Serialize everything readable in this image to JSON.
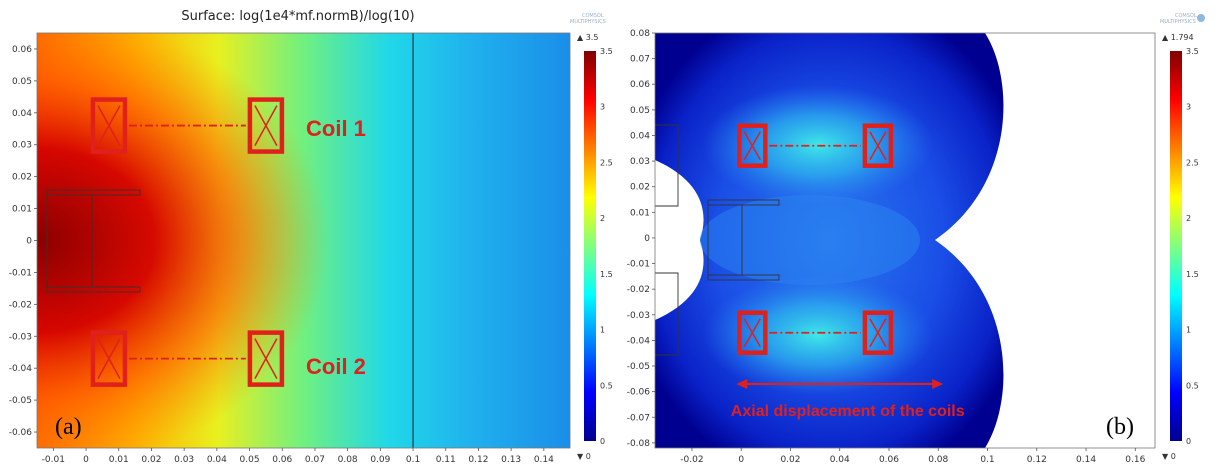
{
  "chart_data": [
    {
      "type": "heatmap",
      "panel_label": "(a)",
      "title": "Surface: log(1e4*mf.normB)/log(10)",
      "xlim": [
        -0.015,
        0.148
      ],
      "ylim": [
        -0.065,
        0.065
      ],
      "x_ticks": [
        "-0.01",
        "0",
        "0.01",
        "0.02",
        "0.03",
        "0.04",
        "0.05",
        "0.06",
        "0.07",
        "0.08",
        "0.09",
        "0.1",
        "0.11",
        "0.12",
        "0.13",
        "0.14"
      ],
      "y_ticks": [
        "0.06",
        "0.05",
        "0.04",
        "0.03",
        "0.02",
        "0.01",
        "0",
        "-0.01",
        "-0.02",
        "-0.03",
        "-0.04",
        "-0.05",
        "-0.06"
      ],
      "colorbar": {
        "max_label": "▲ 3.5",
        "min_label": "▼ 0",
        "ticks": [
          "3.5",
          "3",
          "2.5",
          "2",
          "1.5",
          "1",
          "0.5",
          "0"
        ],
        "range": [
          0,
          3.5
        ]
      },
      "coils": [
        {
          "label": "Coil 1",
          "left_center": [
            0.007,
            0.036
          ],
          "right_center": [
            0.055,
            0.036
          ]
        },
        {
          "label": "Coil 2",
          "left_center": [
            0.007,
            -0.037
          ],
          "right_center": [
            0.055,
            -0.037
          ]
        }
      ],
      "vertical_line_x": 0.1,
      "field_center_value": 3.5
    },
    {
      "type": "heatmap",
      "panel_label": "(b)",
      "xlim": [
        -0.035,
        0.168
      ],
      "ylim": [
        -0.082,
        0.08
      ],
      "x_ticks": [
        "-0.02",
        "0",
        "0.02",
        "0.04",
        "0.06",
        "0.08",
        "0.1",
        "0.12",
        "0.14",
        "0.16"
      ],
      "y_ticks": [
        "0.08",
        "0.07",
        "0.06",
        "0.05",
        "0.04",
        "0.03",
        "0.02",
        "0.01",
        "0",
        "-0.01",
        "-0.02",
        "-0.03",
        "-0.04",
        "-0.05",
        "-0.06",
        "-0.07",
        "-0.08"
      ],
      "colorbar": {
        "max_label": "▲ 1.794",
        "min_label": "▼ 0",
        "ticks": [
          "3.5",
          "3",
          "2.5",
          "2",
          "1.5",
          "1",
          "0.5",
          "0"
        ],
        "range": [
          0,
          3.5
        ]
      },
      "coils": [
        {
          "left_center": [
            0.0045,
            0.036
          ],
          "right_center": [
            0.0555,
            0.036
          ]
        },
        {
          "left_center": [
            0.0045,
            -0.037
          ],
          "right_center": [
            0.0555,
            -0.037
          ]
        }
      ],
      "annotation": {
        "text": "Axial displacement of the coils",
        "x_from": -0.002,
        "x_to": 0.082,
        "y": -0.057
      }
    }
  ],
  "branding": {
    "logo_text": "COMSOL MULTIPHYSICS"
  },
  "colors": {
    "coil_red": "#e0201b",
    "jet_low": "#00008f",
    "jet_high": "#7f0000"
  }
}
